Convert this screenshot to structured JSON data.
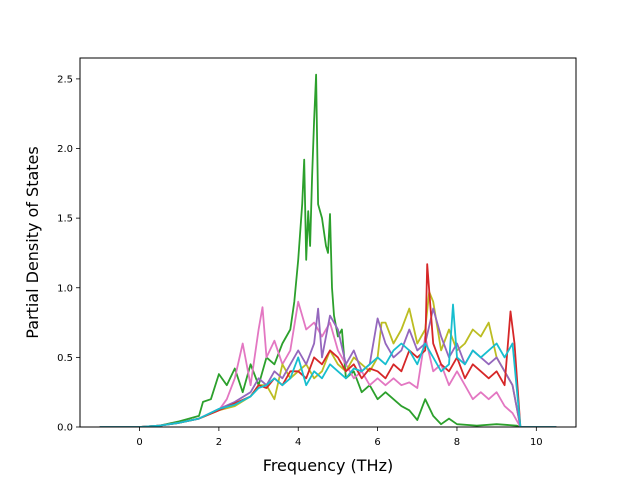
{
  "chart_data": {
    "type": "line",
    "title": "",
    "xlabel": "Frequency (THz)",
    "ylabel": "Partial Density of States",
    "xlim": [
      -1.5,
      11.0
    ],
    "ylim": [
      0.0,
      2.65
    ],
    "xticks": [
      0,
      2,
      4,
      6,
      8,
      10
    ],
    "yticks": [
      0.0,
      0.5,
      1.0,
      1.5,
      2.0,
      2.5
    ],
    "ytick_labels": [
      "0.0",
      "0.5",
      "1.0",
      "1.5",
      "2.0",
      "2.5"
    ],
    "grid": false,
    "legend": "none",
    "series": [
      {
        "color": "#2ca02c",
        "x": [
          -1.0,
          0.0,
          0.5,
          1.0,
          1.5,
          1.6,
          1.8,
          2.0,
          2.2,
          2.4,
          2.6,
          2.8,
          3.0,
          3.2,
          3.4,
          3.6,
          3.8,
          3.9,
          4.0,
          4.1,
          4.15,
          4.2,
          4.25,
          4.3,
          4.35,
          4.4,
          4.45,
          4.5,
          4.6,
          4.7,
          4.75,
          4.8,
          4.85,
          4.9,
          5.0,
          5.1,
          5.2,
          5.4,
          5.6,
          5.8,
          6.0,
          6.2,
          6.4,
          6.6,
          6.8,
          7.0,
          7.2,
          7.4,
          7.6,
          7.8,
          8.0,
          8.5,
          9.0,
          9.5,
          9.6,
          10.5
        ],
        "y": [
          0.0,
          0.0,
          0.01,
          0.04,
          0.08,
          0.18,
          0.2,
          0.38,
          0.3,
          0.42,
          0.25,
          0.45,
          0.3,
          0.5,
          0.45,
          0.6,
          0.7,
          0.9,
          1.2,
          1.6,
          1.92,
          1.2,
          1.55,
          1.3,
          1.8,
          2.2,
          2.53,
          1.6,
          1.5,
          1.3,
          1.25,
          1.53,
          1.0,
          0.8,
          0.65,
          0.7,
          0.35,
          0.4,
          0.25,
          0.3,
          0.2,
          0.25,
          0.2,
          0.15,
          0.12,
          0.05,
          0.2,
          0.08,
          0.02,
          0.06,
          0.02,
          0.01,
          0.02,
          0.01,
          0.0,
          0.0
        ]
      },
      {
        "color": "#e377c2",
        "x": [
          -1.0,
          0.0,
          0.5,
          1.0,
          1.5,
          2.0,
          2.2,
          2.4,
          2.6,
          2.8,
          3.0,
          3.1,
          3.2,
          3.4,
          3.6,
          3.8,
          4.0,
          4.2,
          4.4,
          4.6,
          4.8,
          5.0,
          5.2,
          5.4,
          5.6,
          5.8,
          6.0,
          6.2,
          6.4,
          6.6,
          6.8,
          7.0,
          7.2,
          7.4,
          7.6,
          7.8,
          8.0,
          8.2,
          8.4,
          8.6,
          8.8,
          9.0,
          9.2,
          9.4,
          9.6,
          10.5
        ],
        "y": [
          0.0,
          0.0,
          0.01,
          0.03,
          0.06,
          0.12,
          0.2,
          0.35,
          0.6,
          0.3,
          0.7,
          0.86,
          0.5,
          0.62,
          0.45,
          0.55,
          0.9,
          0.7,
          0.75,
          0.65,
          0.75,
          0.55,
          0.45,
          0.35,
          0.4,
          0.3,
          0.35,
          0.3,
          0.35,
          0.3,
          0.32,
          0.28,
          0.65,
          0.4,
          0.45,
          0.3,
          0.4,
          0.3,
          0.2,
          0.25,
          0.2,
          0.25,
          0.15,
          0.1,
          0.0,
          0.0
        ]
      },
      {
        "color": "#bcbd22",
        "x": [
          -1.0,
          0.0,
          0.5,
          1.0,
          1.5,
          2.0,
          2.4,
          2.8,
          3.0,
          3.2,
          3.4,
          3.6,
          3.8,
          4.0,
          4.2,
          4.4,
          4.6,
          4.8,
          5.0,
          5.2,
          5.4,
          5.6,
          5.8,
          6.0,
          6.1,
          6.2,
          6.4,
          6.6,
          6.8,
          7.0,
          7.2,
          7.3,
          7.4,
          7.6,
          7.8,
          8.0,
          8.2,
          8.4,
          8.6,
          8.8,
          9.0,
          9.2,
          9.4,
          9.6,
          10.5
        ],
        "y": [
          0.0,
          0.0,
          0.01,
          0.03,
          0.06,
          0.12,
          0.15,
          0.22,
          0.3,
          0.3,
          0.2,
          0.45,
          0.35,
          0.4,
          0.45,
          0.35,
          0.4,
          0.55,
          0.45,
          0.4,
          0.5,
          0.45,
          0.4,
          0.5,
          0.75,
          0.75,
          0.6,
          0.7,
          0.85,
          0.6,
          0.7,
          0.97,
          0.9,
          0.55,
          0.7,
          0.55,
          0.6,
          0.7,
          0.65,
          0.75,
          0.5,
          0.4,
          0.3,
          0.0,
          0.0
        ]
      },
      {
        "color": "#9467bd",
        "x": [
          -1.0,
          0.0,
          0.5,
          1.0,
          1.5,
          2.0,
          2.4,
          2.8,
          3.0,
          3.2,
          3.4,
          3.6,
          3.8,
          4.0,
          4.2,
          4.4,
          4.5,
          4.6,
          4.8,
          5.0,
          5.2,
          5.4,
          5.6,
          5.8,
          6.0,
          6.2,
          6.4,
          6.6,
          6.8,
          7.0,
          7.2,
          7.4,
          7.6,
          7.8,
          8.0,
          8.2,
          8.4,
          8.6,
          8.8,
          9.0,
          9.2,
          9.4,
          9.6,
          10.5
        ],
        "y": [
          0.0,
          0.0,
          0.01,
          0.03,
          0.06,
          0.13,
          0.18,
          0.25,
          0.35,
          0.3,
          0.4,
          0.35,
          0.45,
          0.55,
          0.45,
          0.6,
          0.85,
          0.5,
          0.8,
          0.7,
          0.45,
          0.55,
          0.4,
          0.45,
          0.78,
          0.6,
          0.5,
          0.55,
          0.7,
          0.55,
          0.6,
          0.85,
          0.65,
          0.5,
          0.6,
          0.45,
          0.55,
          0.5,
          0.45,
          0.5,
          0.4,
          0.3,
          0.0,
          0.0
        ]
      },
      {
        "color": "#d62728",
        "x": [
          -1.0,
          0.0,
          0.5,
          1.0,
          1.5,
          2.0,
          2.4,
          2.8,
          3.0,
          3.2,
          3.4,
          3.6,
          3.8,
          4.0,
          4.2,
          4.4,
          4.6,
          4.8,
          5.0,
          5.2,
          5.4,
          5.6,
          5.8,
          6.0,
          6.2,
          6.4,
          6.6,
          6.8,
          7.0,
          7.2,
          7.25,
          7.4,
          7.6,
          7.8,
          8.0,
          8.2,
          8.4,
          8.6,
          8.8,
          9.0,
          9.2,
          9.35,
          9.45,
          9.6,
          10.5
        ],
        "y": [
          0.0,
          0.0,
          0.01,
          0.03,
          0.06,
          0.12,
          0.17,
          0.22,
          0.3,
          0.28,
          0.35,
          0.3,
          0.4,
          0.4,
          0.35,
          0.5,
          0.45,
          0.55,
          0.5,
          0.4,
          0.45,
          0.35,
          0.42,
          0.4,
          0.35,
          0.45,
          0.4,
          0.55,
          0.5,
          0.55,
          1.17,
          0.6,
          0.45,
          0.4,
          0.5,
          0.35,
          0.45,
          0.4,
          0.35,
          0.4,
          0.3,
          0.83,
          0.6,
          0.0,
          0.0
        ]
      },
      {
        "color": "#17becf",
        "x": [
          -1.0,
          0.0,
          0.5,
          1.0,
          1.5,
          2.0,
          2.4,
          2.8,
          3.0,
          3.2,
          3.4,
          3.6,
          3.8,
          4.0,
          4.2,
          4.4,
          4.6,
          4.8,
          5.0,
          5.2,
          5.4,
          5.6,
          5.8,
          6.0,
          6.2,
          6.4,
          6.6,
          6.8,
          7.0,
          7.2,
          7.4,
          7.6,
          7.8,
          7.9,
          8.0,
          8.2,
          8.4,
          8.6,
          8.8,
          9.0,
          9.2,
          9.4,
          9.6,
          10.5
        ],
        "y": [
          0.0,
          0.0,
          0.01,
          0.03,
          0.06,
          0.13,
          0.16,
          0.22,
          0.28,
          0.3,
          0.35,
          0.3,
          0.35,
          0.5,
          0.3,
          0.4,
          0.35,
          0.45,
          0.4,
          0.35,
          0.42,
          0.4,
          0.45,
          0.5,
          0.45,
          0.55,
          0.6,
          0.55,
          0.45,
          0.6,
          0.5,
          0.4,
          0.45,
          0.88,
          0.5,
          0.45,
          0.55,
          0.5,
          0.55,
          0.6,
          0.5,
          0.6,
          0.0,
          0.0
        ]
      }
    ]
  }
}
